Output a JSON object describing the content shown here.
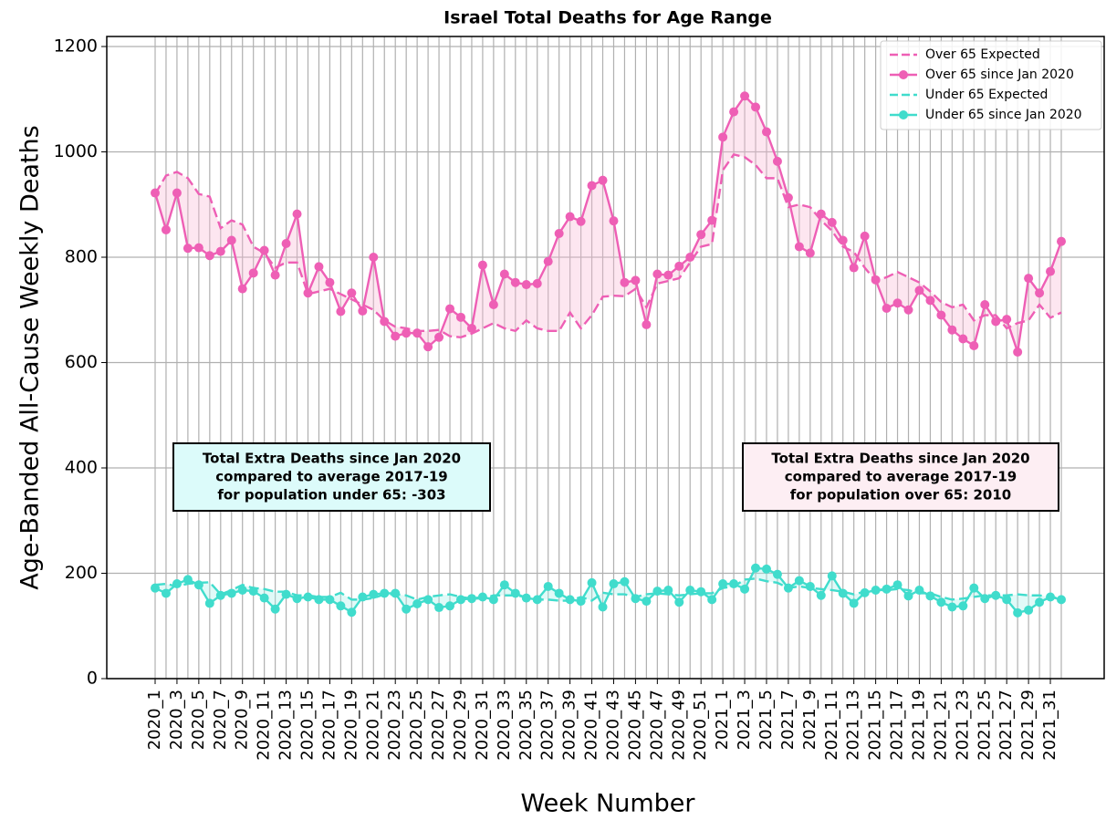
{
  "chart_data": {
    "type": "line",
    "title": "Israel Total Deaths for Age Range",
    "xlabel": "Week Number",
    "ylabel": "Age-Banded All-Cause Weekly Deaths",
    "categories": [
      "2020_1",
      null,
      "2020_3",
      null,
      "2020_5",
      null,
      "2020_7",
      null,
      "2020_9",
      null,
      "2020_11",
      null,
      "2020_13",
      null,
      "2020_15",
      null,
      "2020_17",
      null,
      "2020_19",
      null,
      "2020_21",
      null,
      "2020_23",
      null,
      "2020_25",
      null,
      "2020_27",
      null,
      "2020_29",
      null,
      "2020_31",
      null,
      "2020_33",
      null,
      "2020_35",
      null,
      "2020_37",
      null,
      "2020_39",
      null,
      "2020_41",
      null,
      "2020_43",
      null,
      "2020_45",
      null,
      "2020_47",
      null,
      "2020_49",
      null,
      "2020_51",
      null,
      "2021_1",
      null,
      "2021_3",
      null,
      "2021_5",
      null,
      "2021_7",
      null,
      "2021_9",
      null,
      "2021_11",
      null,
      "2021_13",
      null,
      "2021_15",
      null,
      "2021_17",
      null,
      "2021_19",
      null,
      "2021_21",
      null,
      "2021_23",
      null,
      "2021_25",
      null,
      "2021_27",
      null,
      "2021_29",
      null,
      "2021_31",
      null
    ],
    "series": [
      {
        "name": "Over 65 Expected",
        "color": "#ee5fb5",
        "linestyle": "dashed",
        "marker": false,
        "values": [
          920,
          955,
          962,
          950,
          920,
          915,
          855,
          870,
          862,
          820,
          808,
          780,
          790,
          790,
          730,
          735,
          740,
          730,
          720,
          710,
          700,
          680,
          668,
          665,
          660,
          660,
          662,
          650,
          648,
          655,
          665,
          675,
          665,
          660,
          680,
          665,
          660,
          660,
          695,
          665,
          690,
          725,
          727,
          726,
          740,
          705,
          750,
          755,
          760,
          790,
          820,
          825,
          965,
          995,
          990,
          975,
          950,
          950,
          895,
          900,
          895,
          870,
          850,
          820,
          810,
          780,
          755,
          762,
          772,
          762,
          752,
          735,
          715,
          705,
          710,
          680,
          690,
          690,
          665,
          675,
          680,
          710,
          685,
          695
        ]
      },
      {
        "name": "Over 65 since Jan 2020",
        "color": "#ee5fb5",
        "linestyle": "solid",
        "marker": true,
        "values": [
          922,
          852,
          922,
          817,
          818,
          803,
          811,
          832,
          740,
          770,
          813,
          766,
          826,
          882,
          732,
          782,
          752,
          697,
          732,
          698,
          800,
          678,
          650,
          656,
          656,
          630,
          648,
          702,
          686,
          665,
          785,
          710,
          768,
          752,
          748,
          750,
          792,
          845,
          877,
          868,
          936,
          946,
          869,
          752,
          756,
          672,
          768,
          766,
          783,
          800,
          843,
          870,
          1028,
          1076,
          1106,
          1085,
          1038,
          982,
          913,
          820,
          808,
          882,
          866,
          832,
          780,
          840,
          757,
          703,
          713,
          700,
          737,
          718,
          690,
          662,
          645,
          632,
          710,
          678,
          682,
          620,
          760,
          732,
          773,
          830
        ]
      },
      {
        "name": "Under 65 Expected",
        "color": "#40dccc",
        "linestyle": "dashed",
        "marker": false,
        "values": [
          178,
          180,
          175,
          180,
          182,
          183,
          160,
          168,
          178,
          172,
          170,
          165,
          165,
          158,
          158,
          155,
          155,
          163,
          150,
          150,
          153,
          160,
          160,
          158,
          150,
          155,
          158,
          160,
          155,
          152,
          152,
          158,
          158,
          158,
          155,
          150,
          150,
          148,
          148,
          155,
          148,
          163,
          160,
          160,
          155,
          160,
          162,
          160,
          158,
          160,
          162,
          162,
          172,
          175,
          188,
          190,
          185,
          182,
          172,
          175,
          172,
          170,
          168,
          165,
          160,
          165,
          168,
          168,
          170,
          168,
          162,
          162,
          155,
          150,
          152,
          155,
          158,
          158,
          158,
          160,
          158,
          158,
          155,
          152
        ]
      },
      {
        "name": "Under 65 since Jan 2020",
        "color": "#40dccc",
        "linestyle": "solid",
        "marker": true,
        "values": [
          172,
          162,
          180,
          188,
          178,
          143,
          158,
          162,
          168,
          166,
          153,
          132,
          160,
          152,
          155,
          150,
          150,
          138,
          126,
          155,
          160,
          162,
          162,
          132,
          142,
          150,
          135,
          138,
          150,
          152,
          155,
          150,
          178,
          162,
          153,
          150,
          175,
          162,
          150,
          147,
          182,
          136,
          180,
          184,
          152,
          147,
          166,
          168,
          145,
          168,
          165,
          150,
          180,
          180,
          170,
          210,
          208,
          198,
          172,
          186,
          175,
          158,
          195,
          162,
          143,
          163,
          168,
          170,
          178,
          157,
          168,
          157,
          145,
          136,
          138,
          172,
          152,
          158,
          150,
          125,
          130,
          145,
          155,
          150
        ]
      }
    ],
    "ylim": [
      0,
      1200
    ],
    "yticks": [
      0,
      200,
      400,
      600,
      800,
      1000,
      1200
    ],
    "grid": true,
    "legend": "upper right",
    "annotations": [
      [
        "Total Extra Deaths since Jan 2020",
        "compared to average 2017-19",
        "for population under 65: -303"
      ],
      [
        "Total Extra Deaths since Jan 2020",
        "compared to average 2017-19",
        "for population over 65: 2010"
      ]
    ]
  }
}
